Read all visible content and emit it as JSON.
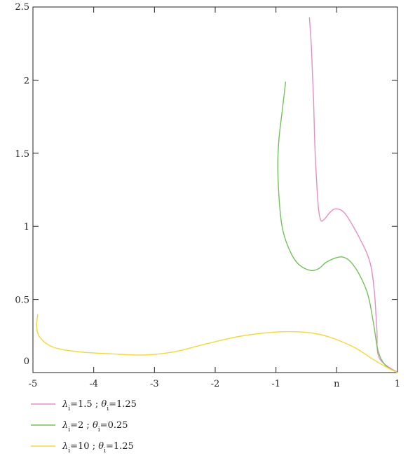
{
  "chart_data": {
    "type": "line",
    "title": "",
    "xlabel": "n",
    "ylabel": "",
    "xlim": [
      -5,
      1
    ],
    "ylim": [
      0,
      2.5
    ],
    "x_ticks": [
      {
        "value": -5,
        "label": "-5"
      },
      {
        "value": -4,
        "label": "-4"
      },
      {
        "value": -3,
        "label": "-3"
      },
      {
        "value": -2,
        "label": "-2"
      },
      {
        "value": -1,
        "label": "-1"
      },
      {
        "value": 0,
        "label": "n"
      },
      {
        "value": 1,
        "label": "1"
      }
    ],
    "y_ticks": [
      {
        "value": 0,
        "label": "0"
      },
      {
        "value": 0.5,
        "label": "0.5"
      },
      {
        "value": 1,
        "label": "1"
      },
      {
        "value": 1.5,
        "label": "1.5"
      },
      {
        "value": 2,
        "label": "2"
      },
      {
        "value": 2.5,
        "label": "2.5"
      }
    ],
    "grid": false,
    "legend_position": "bottom-left",
    "series": [
      {
        "legend": {
          "lam": "λ",
          "sub1": "i",
          "v1": "=1.5 ; ",
          "theta": "θ",
          "sub2": "i",
          "v2": "=1.25"
        },
        "color": "#e38fc4",
        "points": [
          [
            -0.45,
            2.43
          ],
          [
            -0.42,
            2.25
          ],
          [
            -0.4,
            2.05
          ],
          [
            -0.38,
            1.85
          ],
          [
            -0.36,
            1.55
          ],
          [
            -0.33,
            1.3
          ],
          [
            -0.3,
            1.12
          ],
          [
            -0.26,
            1.04
          ],
          [
            -0.2,
            1.05
          ],
          [
            -0.1,
            1.1
          ],
          [
            0.0,
            1.12
          ],
          [
            0.15,
            1.08
          ],
          [
            0.4,
            0.9
          ],
          [
            0.55,
            0.75
          ],
          [
            0.62,
            0.55
          ],
          [
            0.66,
            0.3
          ],
          [
            0.7,
            0.1
          ],
          [
            1.0,
            0.0
          ]
        ]
      },
      {
        "legend": {
          "lam": "λ",
          "sub1": "i",
          "v1": "=2 ; ",
          "theta": "θ",
          "sub2": "i",
          "v2": "=0.25"
        },
        "color": "#74c15d",
        "points": [
          [
            -0.84,
            1.99
          ],
          [
            -0.9,
            1.78
          ],
          [
            -0.95,
            1.6
          ],
          [
            -0.97,
            1.42
          ],
          [
            -0.95,
            1.2
          ],
          [
            -0.9,
            1.0
          ],
          [
            -0.8,
            0.86
          ],
          [
            -0.65,
            0.75
          ],
          [
            -0.45,
            0.7
          ],
          [
            -0.3,
            0.71
          ],
          [
            -0.15,
            0.76
          ],
          [
            0.1,
            0.79
          ],
          [
            0.3,
            0.72
          ],
          [
            0.5,
            0.55
          ],
          [
            0.6,
            0.35
          ],
          [
            0.68,
            0.15
          ],
          [
            0.8,
            0.05
          ],
          [
            1.0,
            0.0
          ]
        ]
      },
      {
        "legend": {
          "lam": "λ",
          "sub1": "i",
          "v1": "=10 ; ",
          "theta": "θ",
          "sub2": "i",
          "v2": "=1.25"
        },
        "color": "#f2d83a",
        "points": [
          [
            -4.92,
            0.4
          ],
          [
            -4.94,
            0.32
          ],
          [
            -4.9,
            0.25
          ],
          [
            -4.75,
            0.19
          ],
          [
            -4.55,
            0.16
          ],
          [
            -4.2,
            0.14
          ],
          [
            -3.8,
            0.13
          ],
          [
            -3.2,
            0.12
          ],
          [
            -2.7,
            0.14
          ],
          [
            -2.3,
            0.18
          ],
          [
            -1.7,
            0.24
          ],
          [
            -1.2,
            0.27
          ],
          [
            -0.8,
            0.28
          ],
          [
            -0.4,
            0.27
          ],
          [
            -0.1,
            0.24
          ],
          [
            0.3,
            0.17
          ],
          [
            0.6,
            0.09
          ],
          [
            0.85,
            0.03
          ],
          [
            1.0,
            0.0
          ]
        ]
      }
    ]
  }
}
